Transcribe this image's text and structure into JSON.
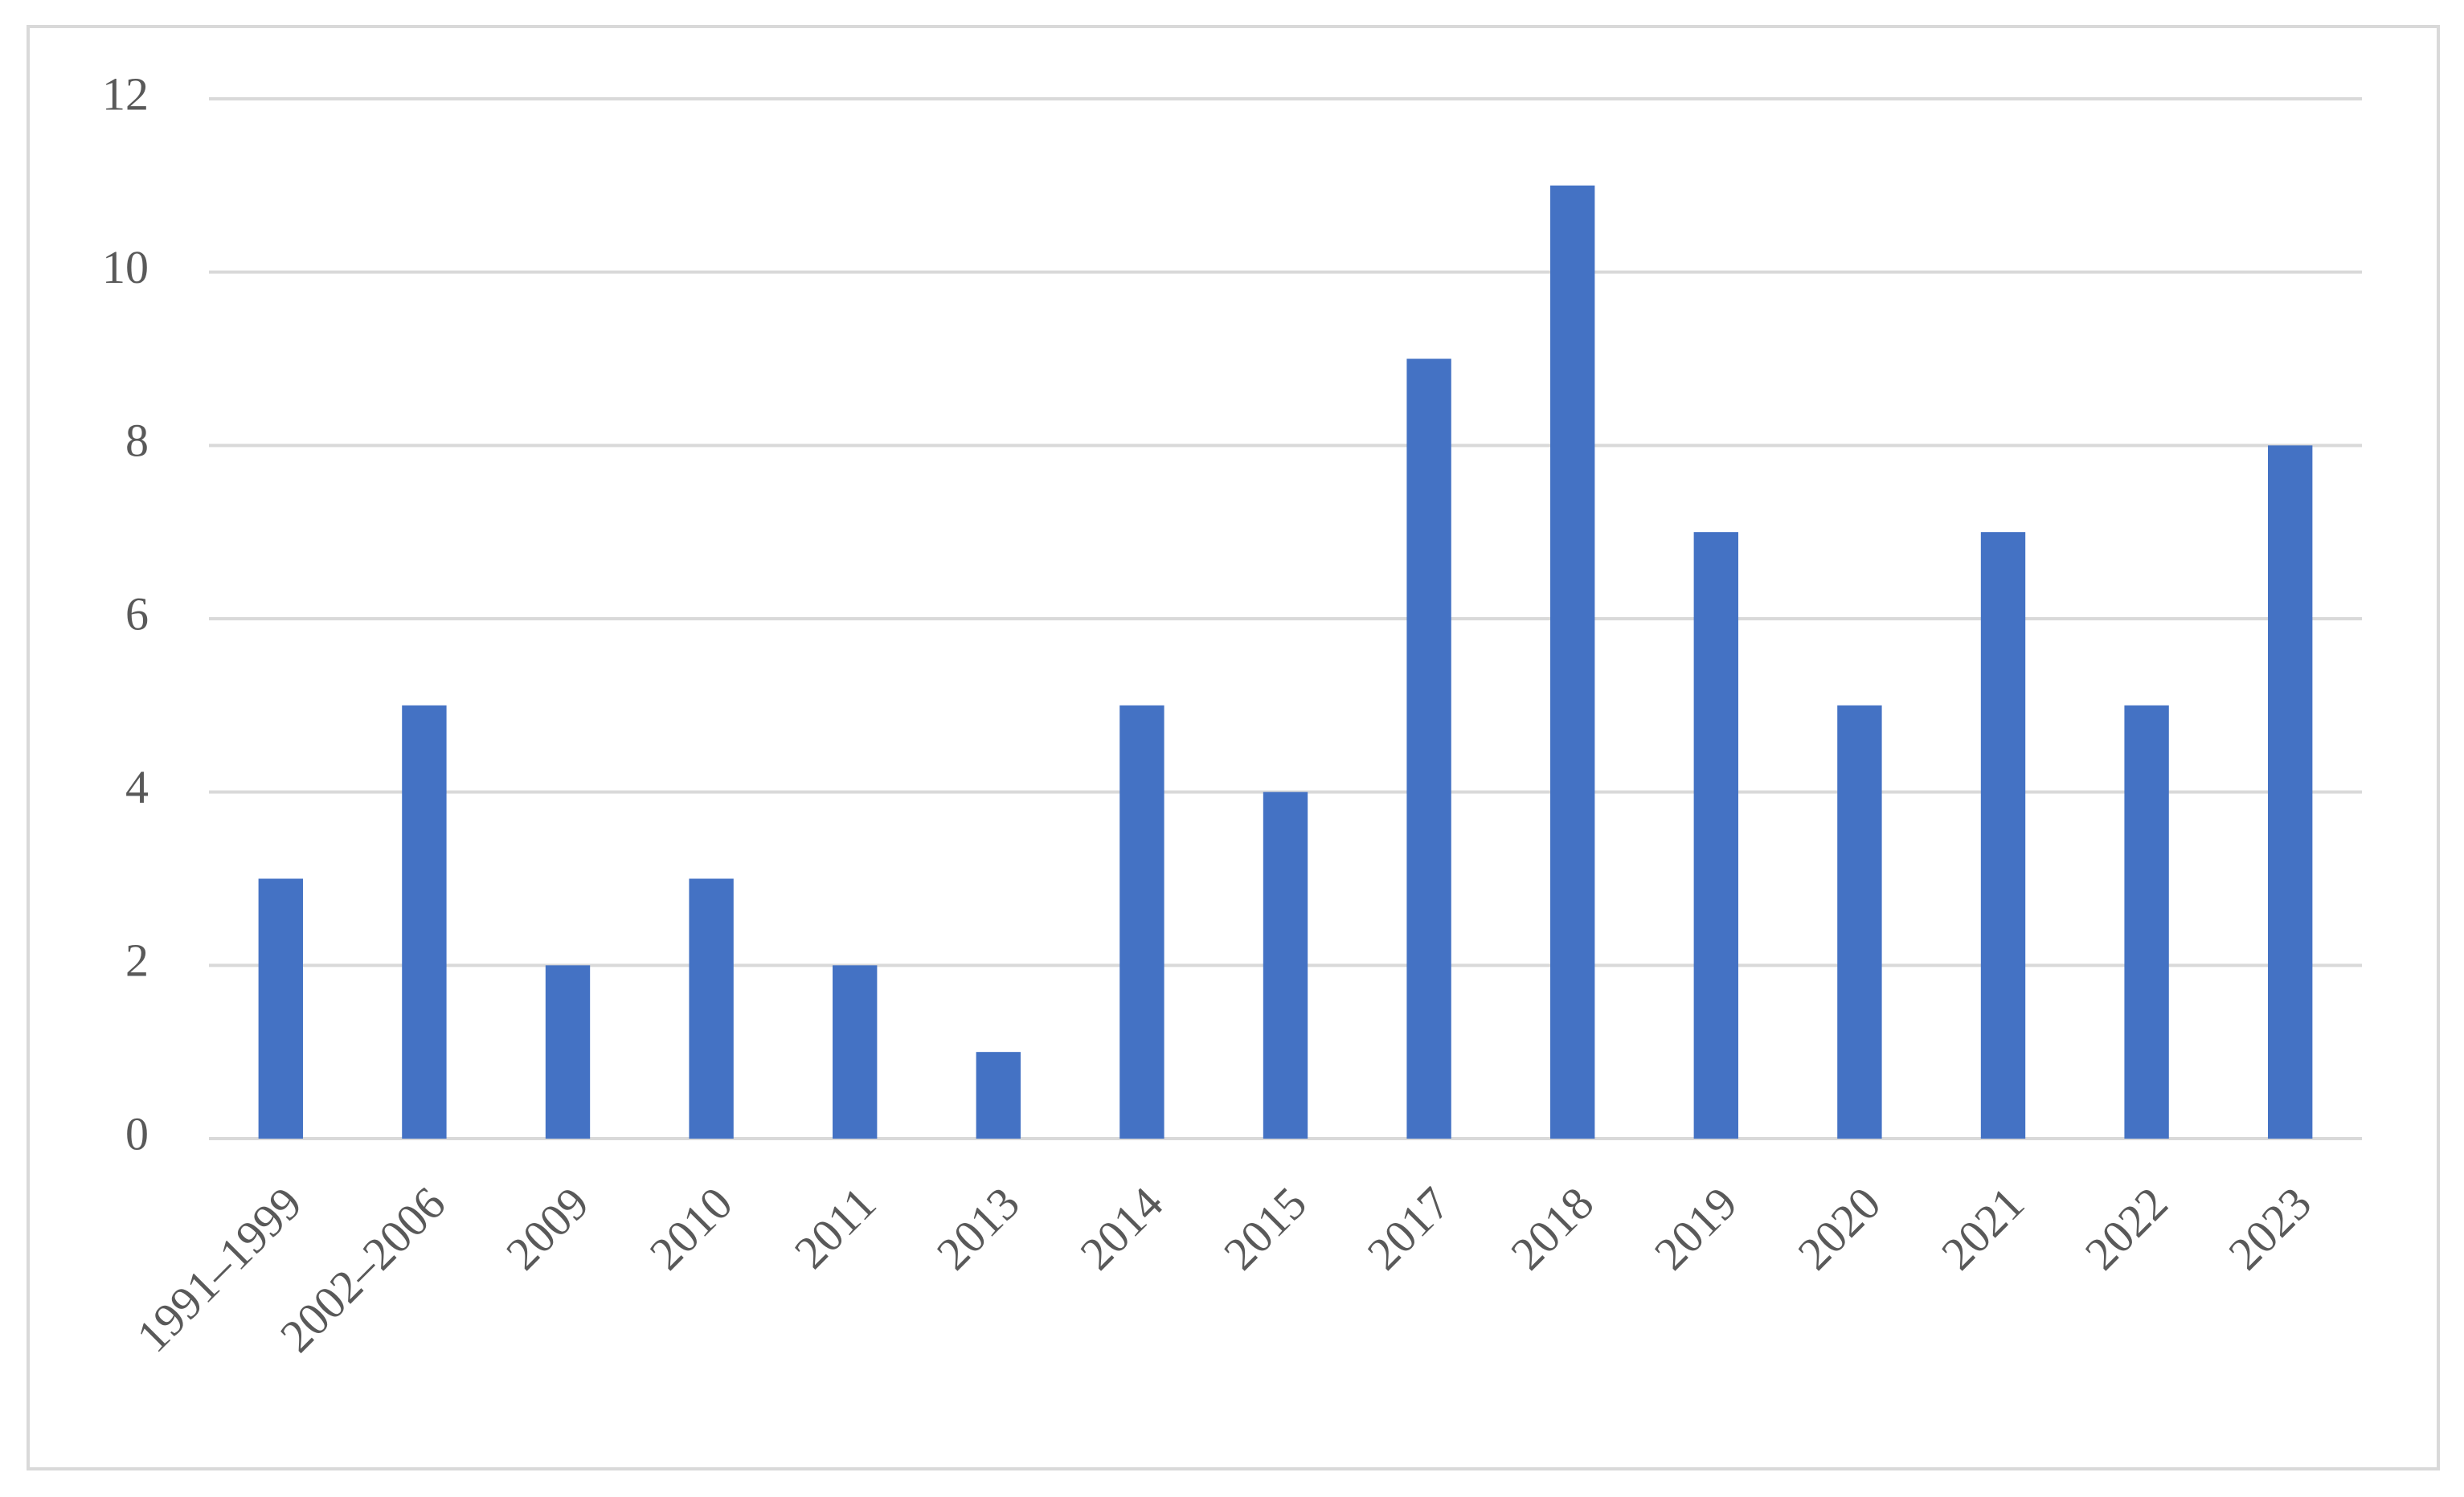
{
  "chart_data": {
    "type": "bar",
    "categories": [
      "1991–1999",
      "2002–2006",
      "2009",
      "2010",
      "2011",
      "2013",
      "2014",
      "2015",
      "2017",
      "2018",
      "2019",
      "2020",
      "2021",
      "2022",
      "2023"
    ],
    "values": [
      3,
      5,
      2,
      3,
      2,
      1,
      5,
      4,
      9,
      11,
      7,
      5,
      7,
      5,
      8
    ],
    "color": "#4472c4",
    "ylim": [
      0,
      12
    ],
    "yticks": [
      0,
      2,
      4,
      6,
      8,
      10,
      12
    ],
    "grid": true
  }
}
